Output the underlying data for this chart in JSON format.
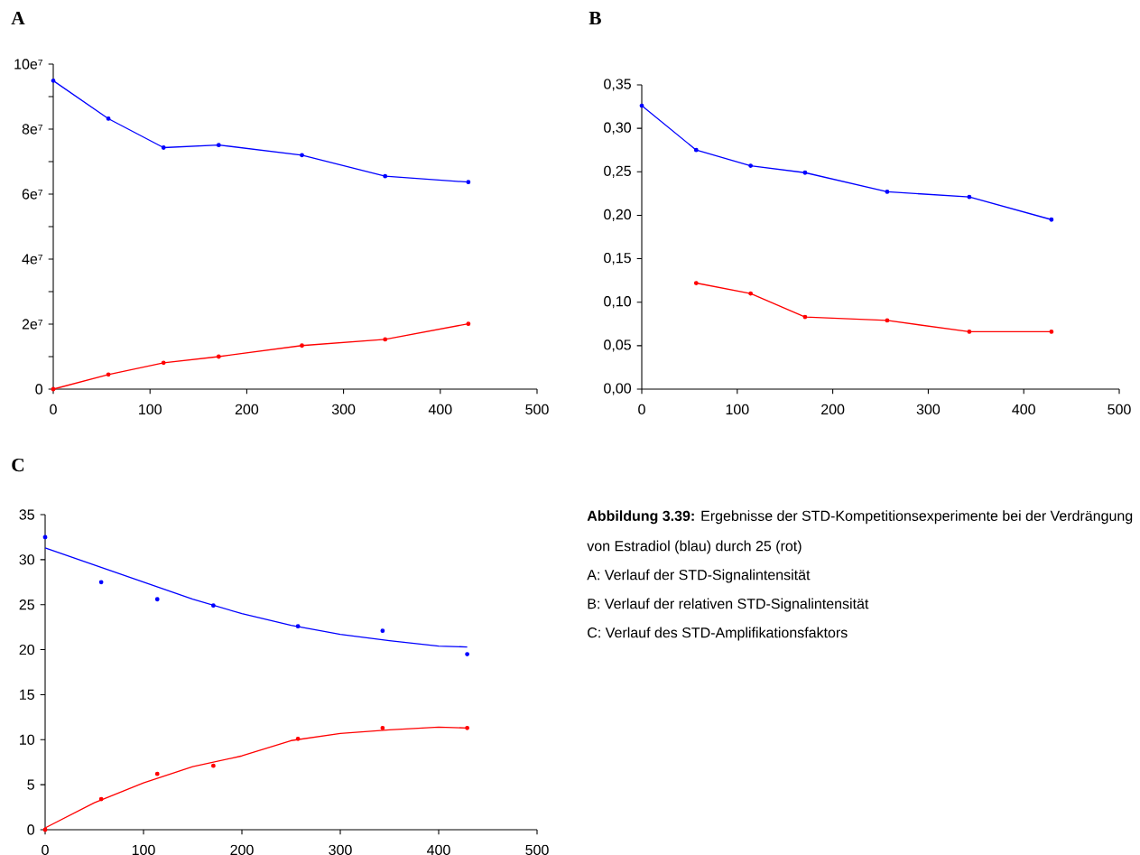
{
  "chart_data": [
    {
      "type": "line",
      "title": "A",
      "x": [
        0,
        57,
        114,
        171,
        257,
        343,
        429
      ],
      "marker": "circle",
      "series": [
        {
          "color": "#0000ff",
          "values": [
            9.49,
            8.32,
            7.43,
            7.51,
            7.2,
            6.55,
            6.37
          ]
        },
        {
          "color": "#ff0000",
          "values": [
            0,
            0.45,
            0.81,
            1.0,
            1.34,
            1.53,
            2.01
          ]
        }
      ],
      "xlim": [
        0,
        500
      ],
      "xticks": [
        0,
        100,
        200,
        300,
        400,
        500
      ],
      "ylim": [
        0,
        10
      ],
      "yticks": [
        0,
        {
          "value": 1,
          "label": null
        },
        {
          "value": 2,
          "label": "2e⁷"
        },
        {
          "value": 3,
          "label": null
        },
        {
          "value": 4,
          "label": "4e⁷"
        },
        {
          "value": 5,
          "label": null
        },
        {
          "value": 6,
          "label": "6e⁷"
        },
        {
          "value": 7,
          "label": null
        },
        {
          "value": 8,
          "label": "8e⁷"
        },
        {
          "value": 9,
          "label": null
        },
        {
          "value": 10,
          "label": "10e⁷"
        }
      ]
    },
    {
      "type": "line",
      "title": "B",
      "x": [
        0,
        57,
        114,
        171,
        257,
        343,
        429
      ],
      "marker": "circle",
      "series": [
        {
          "color": "#0000ff",
          "values": [
            0.326,
            0.275,
            0.257,
            0.249,
            0.227,
            0.221,
            0.195
          ]
        },
        {
          "color": "#ff0000",
          "values": [
            null,
            0.122,
            0.11,
            0.083,
            0.079,
            0.066,
            0.066
          ]
        }
      ],
      "xlim": [
        0,
        500
      ],
      "xticks": [
        0,
        100,
        200,
        300,
        400,
        500
      ],
      "ylim": [
        0,
        0.35
      ],
      "yticks": [
        {
          "value": 0,
          "label": "0,00"
        },
        {
          "value": 0.05,
          "label": "0,05"
        },
        {
          "value": 0.1,
          "label": "0,10"
        },
        {
          "value": 0.15,
          "label": "0,15"
        },
        {
          "value": 0.2,
          "label": "0,20"
        },
        {
          "value": 0.25,
          "label": "0,25"
        },
        {
          "value": 0.3,
          "label": "0,30"
        },
        {
          "value": 0.35,
          "label": "0,35"
        }
      ]
    },
    {
      "type": "scatter",
      "title": "C",
      "x": [
        0,
        57,
        114,
        171,
        257,
        343,
        429
      ],
      "marker": "circle",
      "series": [
        {
          "color": "#0000ff",
          "values": [
            32.5,
            27.5,
            25.6,
            24.9,
            22.6,
            22.1,
            19.5
          ]
        },
        {
          "color": "#ff0000",
          "values": [
            0,
            3.4,
            6.2,
            7.1,
            10.1,
            11.3,
            11.3
          ]
        },
        {
          "type": "line",
          "marker": "none",
          "color": "#0000ff",
          "x": [
            0,
            50,
            100,
            150,
            200,
            250,
            300,
            350,
            400,
            429
          ],
          "values": [
            31.3,
            29.4,
            27.5,
            25.6,
            24.0,
            22.7,
            21.7,
            21.0,
            20.4,
            20.3
          ]
        },
        {
          "type": "line",
          "marker": "none",
          "color": "#ff0000",
          "x": [
            0,
            50,
            100,
            150,
            200,
            250,
            300,
            350,
            400,
            429
          ],
          "values": [
            0.2,
            3.0,
            5.2,
            7.0,
            8.2,
            9.9,
            10.7,
            11.1,
            11.4,
            11.3
          ]
        }
      ],
      "xlim": [
        0,
        500
      ],
      "xticks": [
        0,
        100,
        200,
        300,
        400,
        500
      ],
      "ylim": [
        0,
        35
      ],
      "yticks": [
        0,
        5,
        10,
        15,
        20,
        25,
        30,
        35
      ]
    },
    {
      "type": "other",
      "title": "**Abbildung 3.39:** Ergebnisse der STD-Kompetitionsexperimente bei der Verdrängung von Estradiol (blau) durch 25 (rot)",
      "annotations": [
        "A: Verlauf der STD-Signalintensität",
        "B: Verlauf der relativen STD-Signalintensität",
        "C: Verlauf des STD-Amplifikationsfaktors"
      ]
    }
  ]
}
